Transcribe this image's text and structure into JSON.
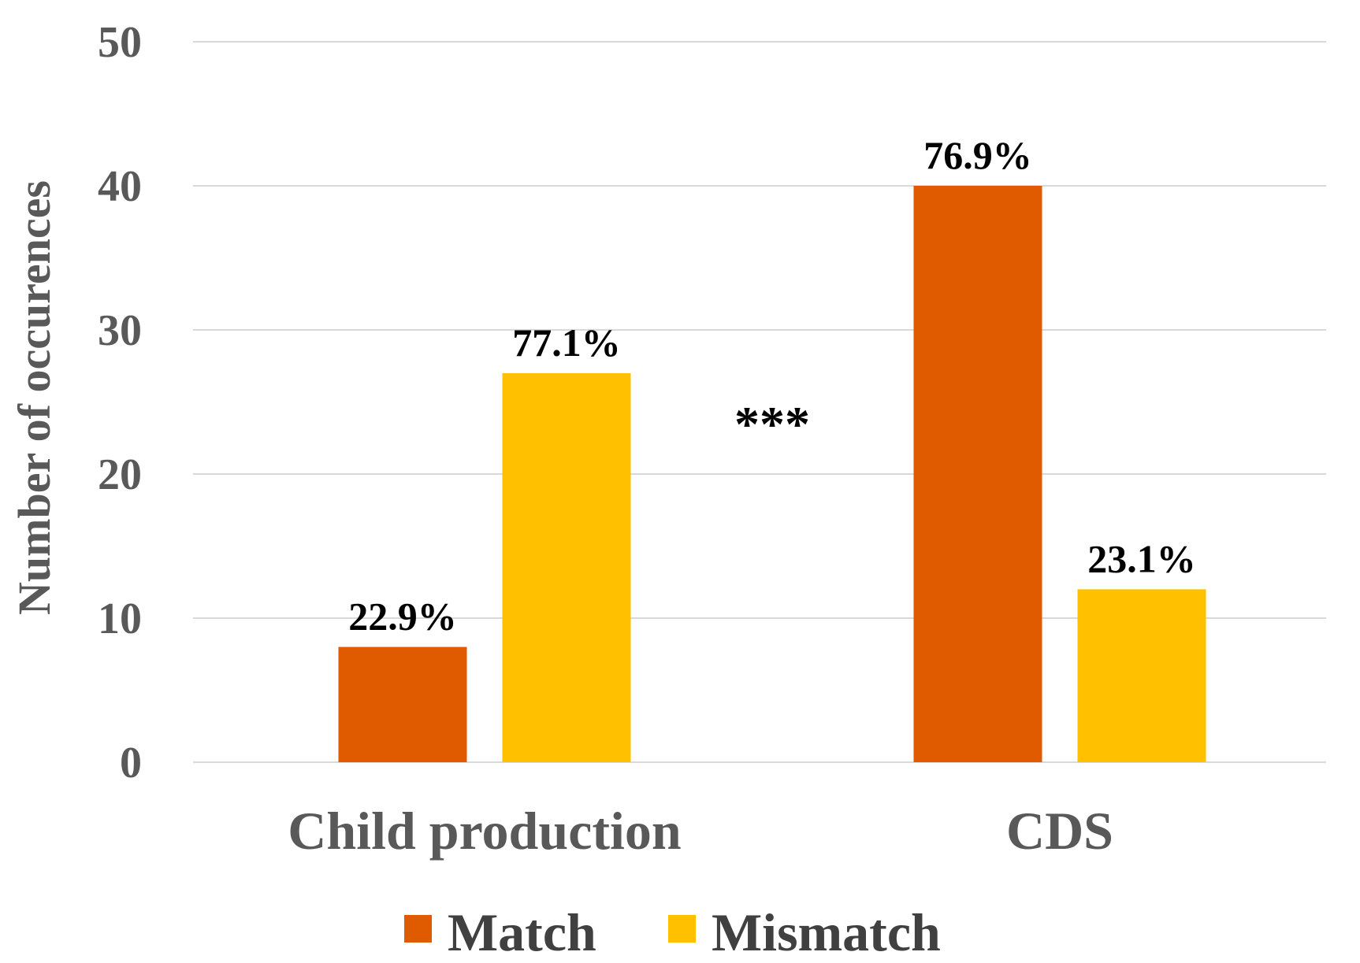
{
  "chart_data": {
    "type": "bar",
    "title": "",
    "categories": [
      "Child production",
      "CDS"
    ],
    "series": [
      {
        "name": "Match",
        "color": "#E05A00",
        "values": [
          8,
          40
        ],
        "labels": [
          "22.9%",
          "76.9%"
        ]
      },
      {
        "name": "Mismatch",
        "color": "#FFC000",
        "values": [
          27,
          12
        ],
        "labels": [
          "77.1%",
          "23.1%"
        ]
      }
    ],
    "xlabel": "",
    "ylabel": "Number of occurences",
    "ylim": [
      0,
      50
    ],
    "yticks": [
      "0",
      "10",
      "20",
      "30",
      "40",
      "50"
    ],
    "grid": true,
    "legend": "bottom",
    "annotation": "***"
  }
}
